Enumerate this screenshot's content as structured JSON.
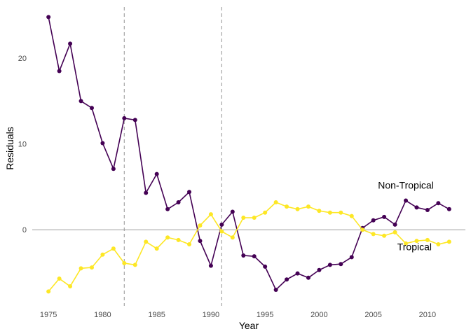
{
  "chart_data": {
    "type": "line",
    "xlabel": "Year",
    "ylabel": "Residuals",
    "xlim": [
      1973.5,
      2013.5
    ],
    "ylim": [
      -8.8,
      26.3
    ],
    "x_ticks": [
      1975,
      1980,
      1985,
      1990,
      1995,
      2000,
      2005,
      2010
    ],
    "y_ticks": [
      0,
      10,
      20
    ],
    "grid": false,
    "zero_line": 0,
    "reference_lines_x": [
      1982,
      1991
    ],
    "x": [
      1975,
      1976,
      1977,
      1978,
      1979,
      1980,
      1981,
      1982,
      1983,
      1984,
      1985,
      1986,
      1987,
      1988,
      1989,
      1990,
      1991,
      1992,
      1993,
      1994,
      1995,
      1996,
      1997,
      1998,
      1999,
      2000,
      2001,
      2002,
      2003,
      2004,
      2005,
      2006,
      2007,
      2008,
      2009,
      2010,
      2011,
      2012
    ],
    "series": [
      {
        "name": "Non-Tropical",
        "color": "#440154",
        "values": [
          24.8,
          18.5,
          21.7,
          15.0,
          14.2,
          10.1,
          7.1,
          13.0,
          12.8,
          4.3,
          6.5,
          2.4,
          3.2,
          4.4,
          -1.3,
          -4.2,
          0.6,
          2.1,
          -3.0,
          -3.1,
          -4.3,
          -7.0,
          -5.8,
          -5.1,
          -5.6,
          -4.7,
          -4.1,
          -4.0,
          -3.2,
          0.2,
          1.1,
          1.5,
          0.6,
          3.4,
          2.6,
          2.3,
          3.1,
          2.4
        ]
      },
      {
        "name": "Tropical",
        "color": "#FDE725",
        "values": [
          -7.2,
          -5.7,
          -6.6,
          -4.5,
          -4.4,
          -2.9,
          -2.2,
          -3.9,
          -4.1,
          -1.4,
          -2.2,
          -0.9,
          -1.2,
          -1.7,
          0.5,
          1.8,
          -0.2,
          -0.9,
          1.4,
          1.4,
          2.0,
          3.2,
          2.7,
          2.4,
          2.7,
          2.2,
          2.0,
          2.0,
          1.6,
          0.0,
          -0.5,
          -0.7,
          -0.3,
          -1.6,
          -1.3,
          -1.2,
          -1.7,
          -1.4
        ]
      }
    ],
    "annotations": [
      {
        "text": "Non-Tropical",
        "x": 2008.0,
        "y": 4.8
      },
      {
        "text": "Tropical",
        "x": 2008.8,
        "y": -2.4
      }
    ],
    "colors": {
      "zero_line": "#9e9e9e",
      "reference_line": "#a6a6a6",
      "tick_text": "#4d4d4d"
    }
  }
}
